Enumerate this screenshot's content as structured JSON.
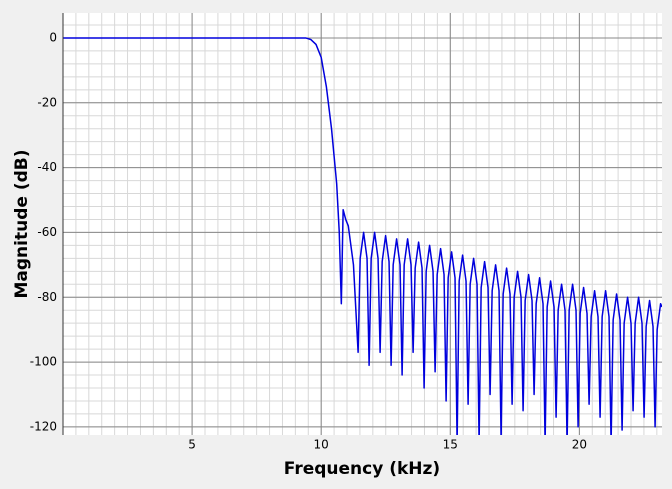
{
  "chart_data": {
    "type": "line",
    "x_label": "Frequency (kHz)",
    "y_label": "Magnitude (dB)",
    "xlim": [
      0,
      23.2
    ],
    "ylim": [
      -122.5,
      7.7
    ],
    "xticks": [
      5,
      10,
      15,
      20
    ],
    "yticks": [
      -120,
      -100,
      -80,
      -60,
      -40,
      -20,
      0
    ],
    "grid": true,
    "minor_grid": true,
    "color": "#0000dd",
    "x": [
      0,
      9.0,
      9.4,
      9.6,
      9.8,
      10.0,
      10.2,
      10.4,
      10.6,
      10.7,
      10.78,
      10.85,
      10.95,
      11.05,
      11.25,
      11.43,
      11.51,
      11.643,
      11.776,
      11.856,
      11.936,
      12.069,
      12.202,
      12.282,
      12.362,
      12.495,
      12.628,
      12.708,
      12.788,
      12.921,
      13.054,
      13.134,
      13.214,
      13.347,
      13.48,
      13.56,
      13.64,
      13.773,
      13.906,
      13.986,
      14.066,
      14.199,
      14.332,
      14.412,
      14.492,
      14.625,
      14.758,
      14.838,
      14.918,
      15.051,
      15.184,
      15.264,
      15.344,
      15.477,
      15.61,
      15.69,
      15.77,
      15.903,
      16.036,
      16.116,
      16.196,
      16.329,
      16.462,
      16.542,
      16.622,
      16.755,
      16.888,
      16.968,
      17.048,
      17.181,
      17.314,
      17.394,
      17.474,
      17.607,
      17.74,
      17.82,
      17.9,
      18.033,
      18.166,
      18.246,
      18.326,
      18.459,
      18.592,
      18.672,
      18.752,
      18.885,
      19.018,
      19.098,
      19.178,
      19.311,
      19.444,
      19.524,
      19.604,
      19.737,
      19.87,
      19.95,
      20.03,
      20.163,
      20.296,
      20.376,
      20.456,
      20.589,
      20.722,
      20.802,
      20.882,
      21.015,
      21.148,
      21.228,
      21.308,
      21.441,
      21.574,
      21.654,
      21.734,
      21.867,
      22.0,
      22.08,
      22.16,
      22.293,
      22.426,
      22.506,
      22.586,
      22.719,
      22.852,
      22.932,
      23.012,
      23.145,
      23.2
    ],
    "values": [
      0,
      0,
      0,
      -0.5,
      -2,
      -6,
      -15,
      -28,
      -45,
      -60,
      -82,
      -53,
      -56,
      -58,
      -70,
      -97,
      -68,
      -60,
      -68,
      -101,
      -68,
      -60,
      -68,
      -97,
      -69,
      -61,
      -69,
      -101,
      -70,
      -62,
      -70,
      -104,
      -70,
      -62,
      -70,
      -97,
      -71,
      -63,
      -71,
      -108,
      -72,
      -64,
      -72,
      -103,
      -73,
      -65,
      -73,
      -112,
      -74,
      -66,
      -74,
      -125,
      -75,
      -67,
      -75,
      -113,
      -76,
      -68,
      -76,
      -125,
      -77,
      -69,
      -77,
      -110,
      -78,
      -70,
      -78,
      -124,
      -79,
      -71,
      -79,
      -113,
      -80,
      -72,
      -80,
      -115,
      -81,
      -73,
      -81,
      -110,
      -82,
      -74,
      -82,
      -125,
      -83,
      -75,
      -83,
      -117,
      -84,
      -76,
      -84,
      -125,
      -84,
      -76,
      -84,
      -120,
      -85,
      -77,
      -85,
      -113,
      -86,
      -78,
      -86,
      -117,
      -86,
      -78,
      -86,
      -125,
      -87,
      -79,
      -87,
      -121,
      -88,
      -80,
      -88,
      -115,
      -88,
      -80,
      -88,
      -117,
      -89,
      -81,
      -89,
      -120,
      -90,
      -82,
      -83
    ]
  }
}
